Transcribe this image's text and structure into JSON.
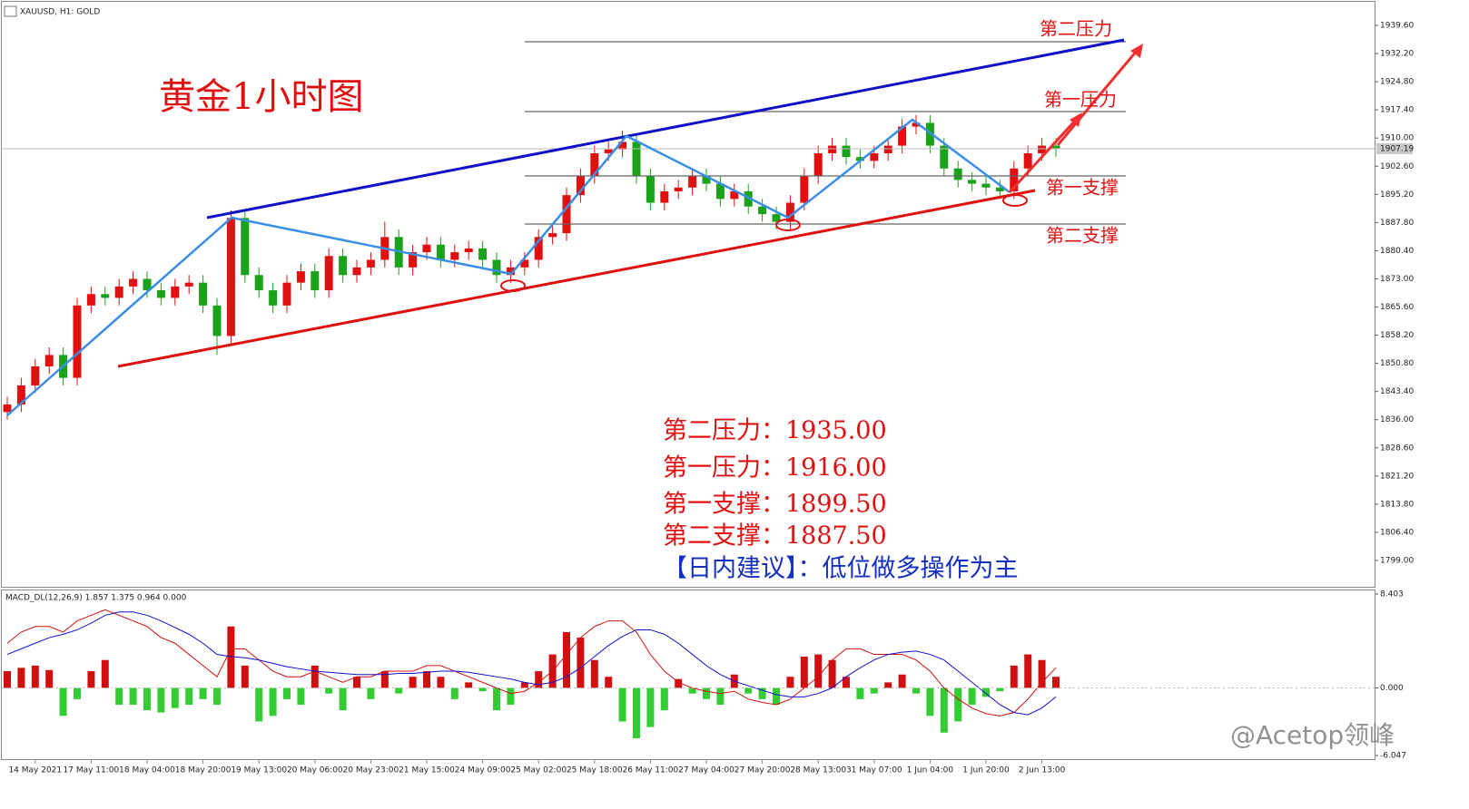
{
  "chart_data": [
    {
      "type": "candlestick",
      "title": "XAUUSD, H1:  GOLD",
      "heading": "黄金1小时图",
      "categories": [
        null,
        null,
        "14 May 2021",
        null,
        null,
        null,
        "17 May 11:00",
        null,
        null,
        null,
        "18 May 04:00",
        null,
        null,
        null,
        "18 May 20:00",
        null,
        null,
        null,
        "19 May 13:00",
        null,
        null,
        null,
        "20 May 06:00",
        null,
        null,
        null,
        "20 May 23:00",
        null,
        null,
        null,
        "21 May 15:00",
        null,
        null,
        null,
        "24 May 09:00",
        null,
        null,
        null,
        "25 May 02:00",
        null,
        null,
        null,
        "25 May 18:00",
        null,
        null,
        null,
        "26 May 11:00",
        null,
        null,
        null,
        "27 May 04:00",
        null,
        null,
        null,
        "27 May 20:00",
        null,
        null,
        null,
        "28 May 13:00",
        null,
        null,
        null,
        "31 May 07:00",
        null,
        null,
        null,
        "1 Jun 04:00",
        null,
        null,
        null,
        "1 Jun 20:00",
        null,
        null,
        null,
        "2 Jun 13:00",
        null
      ],
      "open": [
        1838,
        1840,
        1845,
        1850,
        1853,
        1847,
        1866,
        1869,
        1868,
        1871,
        1873,
        1870,
        1868,
        1871,
        1872,
        1866,
        1858,
        1889,
        1874,
        1870,
        1866,
        1872,
        1875,
        1870,
        1879,
        1874,
        1876,
        1878,
        1884,
        1876,
        1880,
        1882,
        1878,
        1880,
        1881,
        1878,
        1874,
        1876,
        1878,
        1884,
        1885,
        1895,
        1900,
        1906,
        1907,
        1909,
        1900,
        1893,
        1896,
        1897,
        1900,
        1898,
        1894,
        1896,
        1892,
        1890,
        1888,
        1893,
        1900,
        1906,
        1908,
        1905,
        1904,
        1906,
        1908,
        1913,
        1914,
        1908,
        1902,
        1899,
        1898,
        1897,
        1896,
        1902,
        1906,
        1908
      ],
      "high": [
        1842,
        1847,
        1852,
        1855,
        1855,
        1868,
        1871,
        1871,
        1873,
        1875,
        1875,
        1872,
        1873,
        1874,
        1874,
        1868,
        1891,
        1891,
        1876,
        1872,
        1874,
        1877,
        1877,
        1881,
        1881,
        1878,
        1880,
        1888,
        1886,
        1882,
        1884,
        1884,
        1882,
        1883,
        1883,
        1880,
        1878,
        1880,
        1886,
        1887,
        1897,
        1902,
        1908,
        1909,
        1912,
        1911,
        1902,
        1898,
        1899,
        1902,
        1902,
        1900,
        1898,
        1898,
        1894,
        1892,
        1895,
        1902,
        1908,
        1910,
        1910,
        1907,
        1908,
        1910,
        1915,
        1916,
        1916,
        1910,
        1904,
        1901,
        1900,
        1899,
        1904,
        1908,
        1910,
        1910
      ],
      "low": [
        1836,
        1838,
        1843,
        1848,
        1845,
        1845,
        1864,
        1866,
        1866,
        1869,
        1868,
        1866,
        1866,
        1869,
        1864,
        1853,
        1856,
        1872,
        1868,
        1864,
        1864,
        1870,
        1868,
        1868,
        1872,
        1872,
        1874,
        1876,
        1874,
        1874,
        1878,
        1876,
        1876,
        1878,
        1876,
        1872,
        1872,
        1874,
        1876,
        1882,
        1883,
        1893,
        1898,
        1904,
        1905,
        1898,
        1891,
        1891,
        1894,
        1895,
        1896,
        1892,
        1892,
        1890,
        1888,
        1886,
        1886,
        1891,
        1898,
        1904,
        1903,
        1902,
        1902,
        1904,
        1906,
        1911,
        1906,
        1900,
        1897,
        1896,
        1895,
        1894,
        1894,
        1900,
        1904,
        1905
      ],
      "close": [
        1840,
        1845,
        1850,
        1853,
        1847,
        1866,
        1869,
        1868,
        1871,
        1873,
        1870,
        1868,
        1871,
        1872,
        1866,
        1858,
        1889,
        1874,
        1870,
        1866,
        1872,
        1875,
        1870,
        1879,
        1874,
        1876,
        1878,
        1884,
        1876,
        1880,
        1882,
        1878,
        1880,
        1881,
        1878,
        1874,
        1876,
        1878,
        1884,
        1885,
        1895,
        1900,
        1906,
        1907,
        1909,
        1900,
        1893,
        1896,
        1897,
        1900,
        1898,
        1894,
        1896,
        1892,
        1890,
        1888,
        1893,
        1900,
        1906,
        1908,
        1905,
        1904,
        1906,
        1908,
        1913,
        1914,
        1908,
        1902,
        1899,
        1898,
        1897,
        1896,
        1902,
        1906,
        1908,
        1907.19
      ],
      "up_color": "#e01010",
      "down_color": "#1aa31a",
      "last_price": 1907.19,
      "ylim": [
        1791.85,
        1946.27
      ],
      "yticks": [
        {
          "value": 1939.6,
          "label": "1939.60"
        },
        {
          "value": 1932.2,
          "label": "1932.20"
        },
        {
          "value": 1924.8,
          "label": "1924.80"
        },
        {
          "value": 1917.4,
          "label": "1917.40"
        },
        {
          "value": 1910,
          "label": "1910.00"
        },
        {
          "value": 1902.6,
          "label": "1902.60"
        },
        {
          "value": 1895.2,
          "label": "1895.20"
        },
        {
          "value": 1887.8,
          "label": "1887.80"
        },
        {
          "value": 1880.4,
          "label": "1880.40"
        },
        {
          "value": 1873,
          "label": "1873.00"
        },
        {
          "value": 1865.6,
          "label": "1865.60"
        },
        {
          "value": 1858.2,
          "label": "1858.20"
        },
        {
          "value": 1850.8,
          "label": "1850.80"
        },
        {
          "value": 1843.4,
          "label": "1843.40"
        },
        {
          "value": 1836,
          "label": "1836.00"
        },
        {
          "value": 1828.6,
          "label": "1828.60"
        },
        {
          "value": 1821.2,
          "label": "1821.20"
        },
        {
          "value": 1813.8,
          "label": "1813.80"
        },
        {
          "value": 1806.4,
          "label": "1806.40"
        },
        {
          "value": 1799,
          "label": "1799.00"
        }
      ],
      "level_labels": [
        "第二压力",
        "第一压力",
        "第一支撑",
        "第二支撑"
      ],
      "notes": [
        "第二压力：1935.00",
        "第一压力：1916.00",
        "第一支撑：1899.50",
        "第二支撑：1887.50"
      ],
      "advice": "【日内建议】：低位做多操作为主",
      "watermark": "@Acetop领峰"
    },
    {
      "type": "macd",
      "title": "MACD_DL(12,26,9) 1.857 1.375 0.964 0.000",
      "histogram": [
        1.5,
        1.8,
        2,
        1.6,
        -2.5,
        -1,
        1.5,
        2.5,
        -1.5,
        -1.5,
        -2,
        -2.2,
        -1.8,
        -1.5,
        -1,
        -1.5,
        5.5,
        2,
        -3,
        -2.5,
        -1,
        -1.5,
        2,
        -0.5,
        -2,
        1,
        -1,
        1.5,
        -0.5,
        1,
        1.5,
        1,
        -1,
        0.5,
        -0.3,
        -2,
        -1.5,
        0.5,
        1.5,
        3,
        5,
        4.5,
        2.5,
        1,
        -3,
        -4.5,
        -3.5,
        -2,
        0.8,
        -0.5,
        -1,
        -1.5,
        1.2,
        -0.5,
        -1,
        -1.5,
        1,
        2.8,
        3,
        2.5,
        1,
        -1,
        -0.5,
        0.5,
        1.2,
        -0.5,
        -2.5,
        -4,
        -3,
        -1.5,
        -0.8,
        -0.3,
        2,
        3,
        2.5,
        1
      ],
      "main": [
        4,
        5,
        5.5,
        5.5,
        5,
        6,
        6.5,
        7,
        6.5,
        6,
        5.5,
        4.5,
        4,
        3,
        2,
        1,
        3.5,
        3.5,
        2.5,
        1.5,
        1,
        1,
        1.5,
        1,
        0.5,
        1,
        1,
        1.5,
        1.5,
        1.5,
        2,
        2,
        1.5,
        1,
        0.5,
        0,
        -0.5,
        -0.3,
        0.5,
        1.5,
        3,
        4.5,
        5.5,
        6,
        6,
        5,
        3,
        1.5,
        0.5,
        0,
        -0.3,
        -0.5,
        -0.3,
        -1,
        -1.3,
        -1.5,
        -1,
        0,
        1,
        2.5,
        3.5,
        3.5,
        3,
        3,
        3,
        2.5,
        1.5,
        0,
        -1,
        -1.8,
        -2.3,
        -2.5,
        -2.2,
        -1,
        0.5,
        1.8
      ],
      "signal": [
        3,
        3.5,
        4,
        4.5,
        4.8,
        5.2,
        5.8,
        6.5,
        6.8,
        6.8,
        6.5,
        6,
        5.4,
        4.8,
        4,
        3,
        2.8,
        2.7,
        2.5,
        2.2,
        1.9,
        1.7,
        1.5,
        1.4,
        1.3,
        1.2,
        1.2,
        1.2,
        1.3,
        1.3,
        1.4,
        1.5,
        1.5,
        1.4,
        1.2,
        1,
        0.8,
        0.5,
        0.3,
        0.5,
        1,
        1.8,
        2.8,
        3.8,
        4.6,
        5.2,
        5.2,
        4.8,
        4,
        3,
        2,
        1.2,
        0.6,
        0.2,
        -0.2,
        -0.6,
        -0.8,
        -0.8,
        -0.5,
        0,
        1,
        1.8,
        2.5,
        3,
        3.2,
        3.3,
        3,
        2.5,
        1.5,
        0.5,
        -0.5,
        -1.5,
        -2.2,
        -2.4,
        -1.8,
        -0.8
      ],
      "positive_color": "#d01010",
      "negative_color": "#33cc33",
      "main_color": "#d01010",
      "signal_color": "#1010d0",
      "ylim": [
        -6.451,
        8.807
      ],
      "yticks": [
        8.403,
        {
          "value": 0,
          "label": "0.000"
        },
        -6.047
      ]
    }
  ]
}
